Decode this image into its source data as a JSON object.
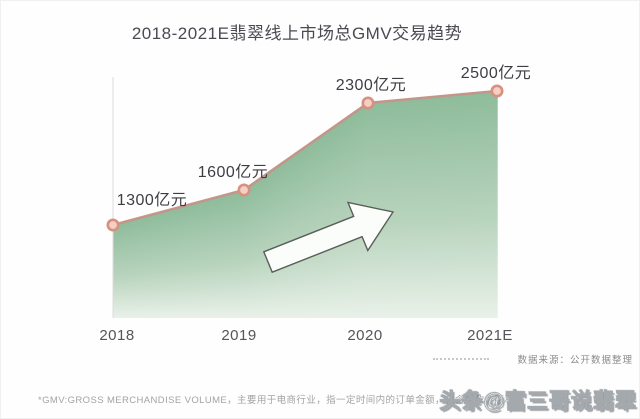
{
  "title": "2018-2021E翡翠线上市场总GMV交易趋势",
  "chart_data": {
    "type": "area",
    "title": "2018-2021E翡翠线上市场总GMV交易趋势",
    "categories": [
      "2018",
      "2019",
      "2020",
      "2021E"
    ],
    "values": [
      1300,
      1600,
      2300,
      2500
    ],
    "unit": "亿元",
    "value_labels": [
      "1300亿元",
      "1600亿元",
      "2300亿元",
      "2500亿元"
    ],
    "xlabel": "",
    "ylabel": "",
    "ylim": [
      0,
      2700
    ],
    "grid": false,
    "legend": "none",
    "has_trend_arrow": true,
    "colors": {
      "line": "#c2978a",
      "point_fill": "#f3cfc5",
      "point_stroke": "#d8907f",
      "area_top": "#8ebc9b",
      "area_mid": "#b7d3bc",
      "area_bottom": "#e9f1e9",
      "axis_line": "#dcdcdc",
      "arrow_fill": "#fbfdfb",
      "arrow_stroke": "#5a5f58"
    }
  },
  "source_note": "数据来源：公开数据整理",
  "footnote": "*GMV:GROSS MERCHANDISE VOLUME，主要用于电商行业，指一定时间内的订单金额，包含付款金额和",
  "watermark": "头条@富三哥说翡翠"
}
